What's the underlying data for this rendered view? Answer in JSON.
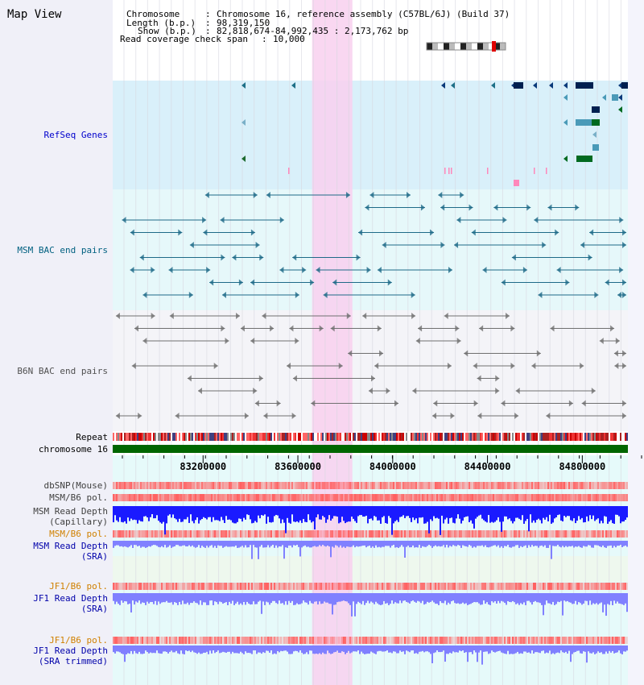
{
  "page_title": "Map View",
  "info": {
    "chromosome_key": "Chromosome",
    "chromosome_val": "Chromosome 16, reference assembly (C57BL/6J) (Build 37)",
    "length_key": "Length (b.p.)",
    "length_val": "98,319,150",
    "show_key": "Show (b.p.)",
    "show_val": "82,818,674-84,992,435 : 2,173,762 bp",
    "span_key": "Read coverage check span",
    "span_val": "10,000"
  },
  "tracks": {
    "refseq": "RefSeq Genes",
    "msm_bac": "MSM BAC end pairs",
    "b6n_bac": "B6N BAC end pairs",
    "repeat": "Repeat",
    "chromosome": "chromosome 16",
    "dbsnp": "dbSNP(Mouse)",
    "msm_b6_pol": "MSM/B6 pol.",
    "msm_read_depth_cap_1": "MSM Read Depth",
    "msm_read_depth_cap_2": "(Capillary)",
    "msm_b6_pol_sra": "MSM/B6 pol.",
    "msm_read_depth_sra_1": "MSM Read Depth",
    "msm_read_depth_sra_2": "(SRA)",
    "jf1_b6_pol_1": "JF1/B6 pol.",
    "jf1_read_depth_sra_1": "JF1 Read Depth",
    "jf1_read_depth_sra_2": "(SRA)",
    "jf1_b6_pol_2": "JF1/B6 pol.",
    "jf1_read_depth_trim_1": "JF1 Read Depth",
    "jf1_read_depth_trim_2": "(SRA trimmed)"
  },
  "axis": {
    "ticks": [
      "83200000",
      "83600000",
      "84000000",
      "84400000",
      "84800000"
    ],
    "tick_positions_bp": [
      83200000,
      83600000,
      84000000,
      84400000,
      84800000
    ],
    "range_bp": [
      82818674,
      84992435
    ]
  },
  "highlight_bp": [
    83660000,
    83830000
  ],
  "colors": {
    "refseq_bg": "#d9f0fa",
    "msm_bg": "#e6f8fa",
    "b6n_bg": "#f4f4f8",
    "highlight": "#f8d0ee",
    "chromosome_bar": "#006600",
    "depth_cap": "#1a1aff",
    "depth_sra": "#8080ff",
    "pol": "#ff6060",
    "msm_label": "#006080",
    "refseq_label": "#0000cc",
    "b6n_label": "#404040",
    "orange_label": "#d08000",
    "blue_label": "#0000aa"
  }
}
